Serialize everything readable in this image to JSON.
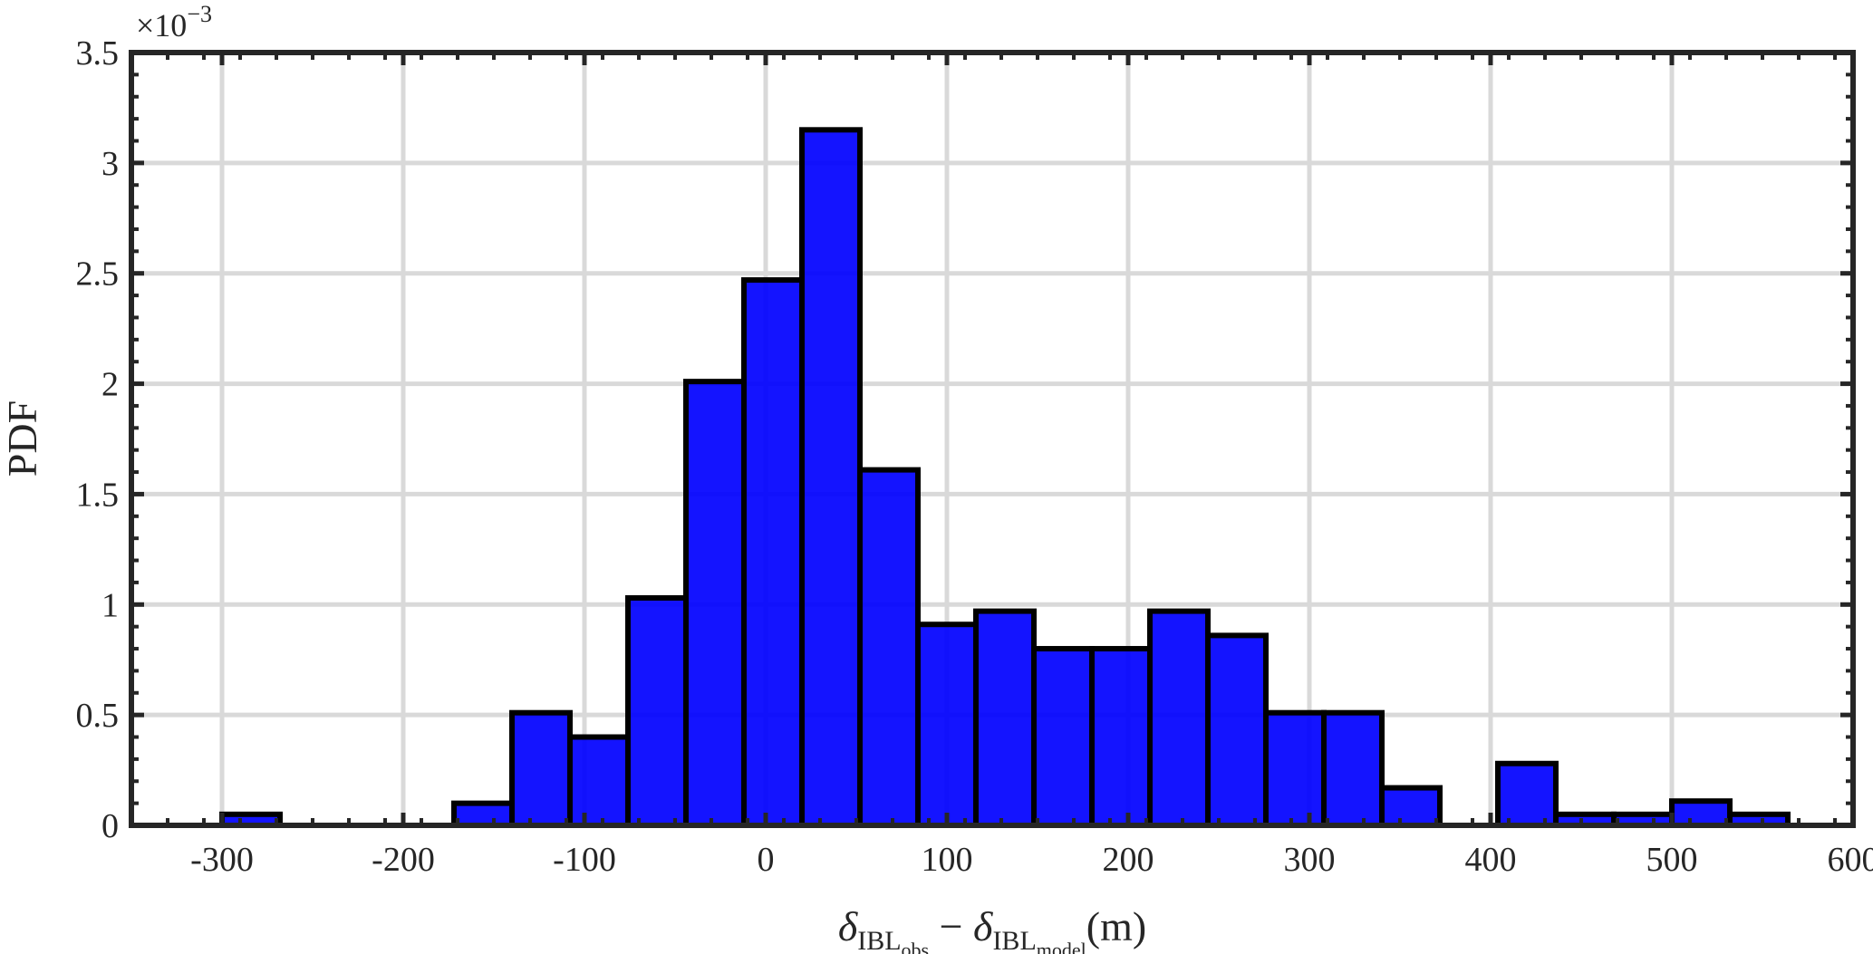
{
  "chart_data": {
    "type": "bar",
    "subtype": "histogram",
    "xlabel": {
      "delta": "δ",
      "sub1_base": "IBL",
      "sub1_sub": "obs",
      "minus": "−",
      "sub2_base": "IBL",
      "sub2_sub": "model",
      "unit": "(m)"
    },
    "ylabel": "PDF",
    "y_exponent": {
      "base": "×10",
      "power": "−3"
    },
    "xlim": [
      -350,
      600
    ],
    "ylim": [
      0,
      3.5
    ],
    "xticks": [
      -300,
      -200,
      -100,
      0,
      100,
      200,
      300,
      400,
      500,
      600
    ],
    "xtick_labels": [
      "-300",
      "-200",
      "-100",
      "0",
      "100",
      "200",
      "300",
      "400",
      "500",
      "600"
    ],
    "yticks": [
      0,
      0.5,
      1,
      1.5,
      2,
      2.5,
      3,
      3.5
    ],
    "ytick_labels": [
      "0",
      "0.5",
      "1",
      "1.5",
      "2",
      "2.5",
      "3",
      "3.5"
    ],
    "grid": true,
    "bar_color": "#0000ff",
    "edge_color": "#000000",
    "bins": [
      {
        "x0": -300,
        "x1": -268,
        "value": 0.05
      },
      {
        "x0": -172,
        "x1": -140,
        "value": 0.1
      },
      {
        "x0": -140,
        "x1": -108,
        "value": 0.51
      },
      {
        "x0": -108,
        "x1": -76,
        "value": 0.4
      },
      {
        "x0": -76,
        "x1": -44,
        "value": 1.03
      },
      {
        "x0": -44,
        "x1": -12,
        "value": 2.01
      },
      {
        "x0": -12,
        "x1": 20,
        "value": 2.47
      },
      {
        "x0": 20,
        "x1": 52,
        "value": 3.15
      },
      {
        "x0": 52,
        "x1": 84,
        "value": 1.61
      },
      {
        "x0": 84,
        "x1": 116,
        "value": 0.91
      },
      {
        "x0": 116,
        "x1": 148,
        "value": 0.97
      },
      {
        "x0": 148,
        "x1": 180,
        "value": 0.8
      },
      {
        "x0": 180,
        "x1": 212,
        "value": 0.8
      },
      {
        "x0": 212,
        "x1": 244,
        "value": 0.97
      },
      {
        "x0": 244,
        "x1": 276,
        "value": 0.86
      },
      {
        "x0": 276,
        "x1": 308,
        "value": 0.51
      },
      {
        "x0": 308,
        "x1": 340,
        "value": 0.51
      },
      {
        "x0": 340,
        "x1": 372,
        "value": 0.17
      },
      {
        "x0": 404,
        "x1": 436,
        "value": 0.28
      },
      {
        "x0": 436,
        "x1": 468,
        "value": 0.05
      },
      {
        "x0": 468,
        "x1": 500,
        "value": 0.05
      },
      {
        "x0": 500,
        "x1": 532,
        "value": 0.11
      },
      {
        "x0": 532,
        "x1": 564,
        "value": 0.05
      }
    ]
  }
}
